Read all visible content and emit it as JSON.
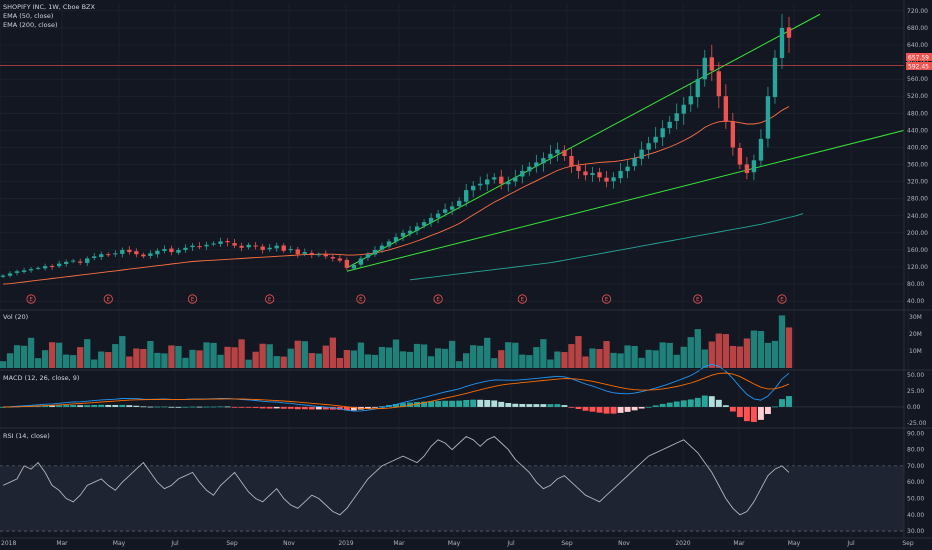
{
  "legend": {
    "symbol": "SHOPIFY INC, 1W, Cboe BZX",
    "ema50": "EMA (50, close)",
    "ema200": "EMA (200, close)"
  },
  "panes": {
    "volume": "Vol (20)",
    "macd": "MACD (12, 26, close, 9)",
    "rsi": "RSI (14, close)"
  },
  "price_tags": {
    "last": "657.59",
    "line": "592.45"
  },
  "colors": {
    "up": "#26a69a",
    "down": "#ef5350",
    "trend": "#39e639",
    "ema50": "#ff7043",
    "ema200": "#26a69a",
    "macd": "#2196f3",
    "signal": "#ff6d00",
    "rsi": "#b2b5be",
    "bg": "#131722",
    "grid": "#222632"
  },
  "chart_data": [
    {
      "type": "candlestick",
      "title": "SHOPIFY INC, 1W, Cboe BZX",
      "y_ticks": [
        "720.00",
        "680.00",
        "640.00",
        "600.00",
        "560.00",
        "520.00",
        "480.00",
        "440.00",
        "400.00",
        "360.00",
        "320.00",
        "280.00",
        "240.00",
        "200.00",
        "160.00",
        "120.00",
        "80.00",
        "40.00"
      ],
      "ylim": [
        24,
        736
      ],
      "x_ticks": [
        "2018",
        "Mar",
        "May",
        "Jul",
        "Sep",
        "Nov",
        "2019",
        "Mar",
        "May",
        "Jul",
        "Sep",
        "Nov",
        "2020",
        "Mar",
        "May",
        "Jul",
        "Sep"
      ],
      "closes": [
        100,
        105,
        110,
        112,
        115,
        118,
        122,
        120,
        128,
        132,
        135,
        130,
        140,
        145,
        150,
        148,
        152,
        160,
        155,
        150,
        145,
        152,
        158,
        162,
        155,
        160,
        165,
        170,
        168,
        172,
        175,
        180,
        178,
        170,
        165,
        172,
        168,
        160,
        165,
        170,
        158,
        162,
        150,
        155,
        148,
        150,
        145,
        140,
        135,
        118,
        125,
        140,
        150,
        160,
        170,
        180,
        190,
        200,
        205,
        215,
        225,
        235,
        245,
        255,
        262,
        275,
        300,
        310,
        315,
        325,
        330,
        315,
        320,
        330,
        345,
        355,
        365,
        375,
        385,
        395,
        380,
        355,
        345,
        335,
        340,
        330,
        320,
        330,
        345,
        355,
        375,
        395,
        410,
        425,
        445,
        460,
        480,
        500,
        520,
        560,
        610,
        580,
        520,
        460,
        400,
        360,
        340,
        370,
        420,
        520,
        610,
        680,
        657
      ],
      "ema50": [
        80,
        81,
        83,
        85,
        87,
        89,
        91,
        93,
        95,
        97,
        99,
        101,
        103,
        105,
        107,
        109,
        111,
        113,
        115,
        117,
        119,
        121,
        123,
        125,
        127,
        129,
        131,
        133,
        134,
        135,
        136,
        137,
        138,
        139,
        140,
        141,
        142,
        143,
        144,
        145,
        146,
        147,
        148,
        149,
        149,
        150,
        150,
        150,
        149,
        148,
        148,
        149,
        151,
        153,
        156,
        160,
        165,
        170,
        175,
        181,
        187,
        194,
        200,
        207,
        214,
        222,
        232,
        242,
        252,
        262,
        272,
        280,
        289,
        297,
        306,
        314,
        322,
        330,
        338,
        346,
        352,
        356,
        359,
        361,
        363,
        365,
        366,
        367,
        369,
        372,
        375,
        379,
        384,
        389,
        395,
        401,
        408,
        416,
        425,
        435,
        447,
        455,
        460,
        462,
        461,
        458,
        455,
        455,
        458,
        465,
        475,
        487,
        496
      ],
      "ema200_start_index": 58,
      "ema200": [
        90,
        92,
        94,
        96,
        98,
        100,
        102,
        104,
        106,
        108,
        110,
        112,
        114,
        116,
        118,
        120,
        122,
        124,
        126,
        128,
        130,
        133,
        136,
        139,
        142,
        145,
        148,
        151,
        154,
        157,
        160,
        163,
        166,
        169,
        172,
        175,
        178,
        181,
        184,
        187,
        190,
        193,
        196,
        199,
        202,
        205,
        208,
        211,
        214,
        217,
        220,
        224,
        228,
        232,
        236,
        240,
        245
      ],
      "earnings_markers": [
        "E",
        "E",
        "E",
        "E",
        "E",
        "E",
        "E",
        "E",
        "E",
        "E"
      ]
    },
    {
      "type": "bar",
      "title": "Vol (20)",
      "y_ticks": [
        "30M",
        "20M",
        "10M"
      ],
      "ylim": [
        0,
        33
      ]
    },
    {
      "type": "line",
      "title": "MACD (12, 26, close, 9)",
      "y_ticks": [
        "50.00",
        "25.00",
        "0.00",
        "-25.00"
      ],
      "ylim": [
        -30,
        55
      ]
    },
    {
      "type": "line",
      "title": "RSI (14, close)",
      "y_ticks": [
        "90.00",
        "80.00",
        "70.00",
        "60.00",
        "50.00",
        "40.00",
        "30.00"
      ],
      "ylim": [
        27,
        92
      ],
      "values": [
        58,
        60,
        62,
        70,
        68,
        72,
        66,
        58,
        55,
        50,
        48,
        52,
        58,
        60,
        62,
        58,
        55,
        60,
        64,
        68,
        72,
        66,
        60,
        56,
        58,
        62,
        64,
        66,
        60,
        55,
        52,
        58,
        62,
        66,
        60,
        54,
        50,
        48,
        52,
        56,
        50,
        46,
        44,
        48,
        52,
        50,
        46,
        42,
        40,
        44,
        50,
        56,
        62,
        66,
        70,
        72,
        74,
        76,
        74,
        72,
        76,
        82,
        86,
        84,
        80,
        84,
        88,
        86,
        82,
        86,
        88,
        84,
        80,
        74,
        70,
        66,
        60,
        56,
        58,
        62,
        64,
        60,
        56,
        52,
        50,
        48,
        52,
        56,
        60,
        64,
        68,
        72,
        76,
        78,
        80,
        82,
        84,
        86,
        82,
        78,
        72,
        66,
        58,
        50,
        44,
        40,
        42,
        48,
        56,
        64,
        68,
        70,
        66
      ]
    }
  ]
}
